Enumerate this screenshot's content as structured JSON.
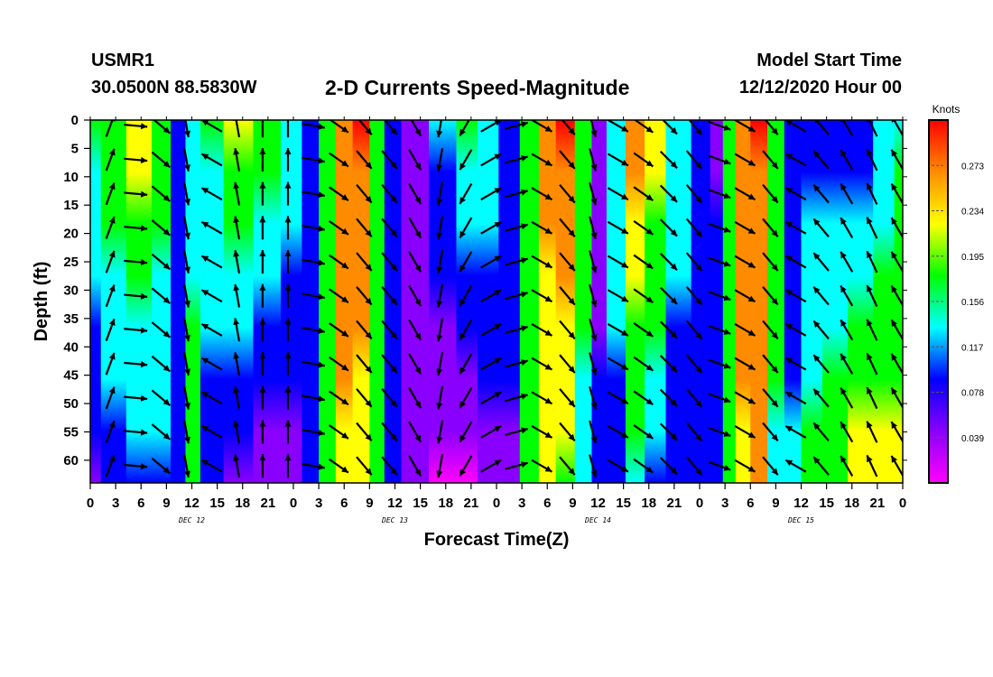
{
  "header": {
    "station_id": "USMR1",
    "coords": "30.0500N 88.5830W",
    "title": "2-D Currents Speed-Magnitude",
    "model_start_label": "Model Start Time",
    "model_start_value": "12/12/2020 Hour 00"
  },
  "colors": {
    "magenta": "#ff00ff",
    "purple": "#8a00ff",
    "blue": "#0000ff",
    "cyan": "#00ffff",
    "green": "#00ff00",
    "yellow": "#ffff00",
    "orange": "#ff8c00",
    "red": "#ff0000",
    "border": "#000000"
  },
  "chart_data": {
    "type": "heatmap",
    "title": "2-D Currents Speed-Magnitude",
    "xlabel": "Forecast Time(Z)",
    "ylabel": "Depth (ft)",
    "x_tick_labels": [
      "0",
      "3",
      "6",
      "9",
      "12",
      "15",
      "18",
      "21",
      "0",
      "3",
      "6",
      "9",
      "12",
      "15",
      "18",
      "21",
      "0",
      "3",
      "6",
      "9",
      "12",
      "15",
      "18",
      "21",
      "0",
      "3",
      "6",
      "9",
      "12",
      "15",
      "18",
      "21",
      "0"
    ],
    "x_range_hours": [
      0,
      96
    ],
    "day_labels": [
      {
        "label": "DEC 12",
        "hour": 12
      },
      {
        "label": "DEC 13",
        "hour": 36
      },
      {
        "label": "DEC 14",
        "hour": 60
      },
      {
        "label": "DEC 15",
        "hour": 84
      }
    ],
    "y_tick_labels": [
      "0",
      "5",
      "10",
      "15",
      "20",
      "25",
      "30",
      "35",
      "40",
      "45",
      "50",
      "55",
      "60"
    ],
    "y_range_ft": [
      0,
      64
    ],
    "colorbar": {
      "unit": "Knots",
      "ticks": [
        "0.273",
        "0.234",
        "0.195",
        "0.156",
        "0.117",
        "0.078",
        "0.039"
      ],
      "tick_values": [
        0.273,
        0.234,
        0.195,
        0.156,
        0.117,
        0.078,
        0.039
      ],
      "range": [
        0.0,
        0.312
      ]
    },
    "speed_columns": [
      {
        "hour": 0,
        "surface": 0.16,
        "bottom": 0.06
      },
      {
        "hour": 2.5,
        "surface": 0.2,
        "bottom": 0.08
      },
      {
        "hour": 6,
        "surface": 0.24,
        "bottom": 0.09
      },
      {
        "hour": 8.5,
        "surface": 0.18,
        "bottom": 0.1
      },
      {
        "hour": 10.5,
        "surface": 0.08,
        "bottom": 0.1
      },
      {
        "hour": 12,
        "surface": 0.12,
        "bottom": 0.2
      },
      {
        "hour": 14,
        "surface": 0.16,
        "bottom": 0.09
      },
      {
        "hour": 17.5,
        "surface": 0.22,
        "bottom": 0.06
      },
      {
        "hour": 21,
        "surface": 0.2,
        "bottom": 0.03
      },
      {
        "hour": 24,
        "surface": 0.14,
        "bottom": 0.05
      },
      {
        "hour": 26,
        "surface": 0.1,
        "bottom": 0.07
      },
      {
        "hour": 28,
        "surface": 0.17,
        "bottom": 0.2
      },
      {
        "hour": 30,
        "surface": 0.27,
        "bottom": 0.24
      },
      {
        "hour": 32,
        "surface": 0.29,
        "bottom": 0.22
      },
      {
        "hour": 34,
        "surface": 0.2,
        "bottom": 0.18
      },
      {
        "hour": 35.5,
        "surface": 0.08,
        "bottom": 0.07
      },
      {
        "hour": 38,
        "surface": 0.06,
        "bottom": 0.03
      },
      {
        "hour": 42,
        "surface": 0.12,
        "bottom": 0.02
      },
      {
        "hour": 44.5,
        "surface": 0.16,
        "bottom": 0.02
      },
      {
        "hour": 47,
        "surface": 0.14,
        "bottom": 0.04
      },
      {
        "hour": 49.5,
        "surface": 0.1,
        "bottom": 0.06
      },
      {
        "hour": 52,
        "surface": 0.18,
        "bottom": 0.18
      },
      {
        "hour": 54,
        "surface": 0.27,
        "bottom": 0.21
      },
      {
        "hour": 56,
        "surface": 0.29,
        "bottom": 0.2
      },
      {
        "hour": 58.5,
        "surface": 0.18,
        "bottom": 0.14
      },
      {
        "hour": 60,
        "surface": 0.06,
        "bottom": 0.07
      },
      {
        "hour": 62,
        "surface": 0.13,
        "bottom": 0.1
      },
      {
        "hour": 64.5,
        "surface": 0.27,
        "bottom": 0.14
      },
      {
        "hour": 66.5,
        "surface": 0.24,
        "bottom": 0.1
      },
      {
        "hour": 69.5,
        "surface": 0.14,
        "bottom": 0.08
      },
      {
        "hour": 72.5,
        "surface": 0.08,
        "bottom": 0.09
      },
      {
        "hour": 74,
        "surface": 0.06,
        "bottom": 0.1
      },
      {
        "hour": 75.5,
        "surface": 0.17,
        "bottom": 0.16
      },
      {
        "hour": 77,
        "surface": 0.27,
        "bottom": 0.24
      },
      {
        "hour": 79,
        "surface": 0.29,
        "bottom": 0.25
      },
      {
        "hour": 81,
        "surface": 0.18,
        "bottom": 0.15
      },
      {
        "hour": 83,
        "surface": 0.08,
        "bottom": 0.12
      },
      {
        "hour": 85,
        "surface": 0.1,
        "bottom": 0.17
      },
      {
        "hour": 88,
        "surface": 0.08,
        "bottom": 0.2
      },
      {
        "hour": 91,
        "surface": 0.09,
        "bottom": 0.22
      },
      {
        "hour": 94,
        "surface": 0.13,
        "bottom": 0.22
      },
      {
        "hour": 96,
        "surface": 0.15,
        "bottom": 0.22
      }
    ],
    "arrow_columns": [
      {
        "hour": 3,
        "dir": 20
      },
      {
        "hour": 6,
        "dir": 95
      },
      {
        "hour": 9,
        "dir": 130
      },
      {
        "hour": 12,
        "dir": 170
      },
      {
        "hour": 15,
        "dir": 300
      },
      {
        "hour": 18,
        "dir": 350
      },
      {
        "hour": 21,
        "dir": 0
      },
      {
        "hour": 24,
        "dir": 0
      },
      {
        "hour": 27,
        "dir": 100
      },
      {
        "hour": 30,
        "dir": 125
      },
      {
        "hour": 33,
        "dir": 140
      },
      {
        "hour": 36,
        "dir": 140
      },
      {
        "hour": 39,
        "dir": 150
      },
      {
        "hour": 42,
        "dir": 190
      },
      {
        "hour": 45,
        "dir": 210
      },
      {
        "hour": 48,
        "dir": 60
      },
      {
        "hour": 51,
        "dir": 75
      },
      {
        "hour": 54,
        "dir": 120
      },
      {
        "hour": 57,
        "dir": 140
      },
      {
        "hour": 60,
        "dir": 165
      },
      {
        "hour": 63,
        "dir": 120
      },
      {
        "hour": 66,
        "dir": 125
      },
      {
        "hour": 69,
        "dir": 135
      },
      {
        "hour": 72,
        "dir": 140
      },
      {
        "hour": 75,
        "dir": 110
      },
      {
        "hour": 78,
        "dir": 120
      },
      {
        "hour": 81,
        "dir": 140
      },
      {
        "hour": 84,
        "dir": 300
      },
      {
        "hour": 87,
        "dir": 320
      },
      {
        "hour": 90,
        "dir": 330
      },
      {
        "hour": 93,
        "dir": 335
      },
      {
        "hour": 96,
        "dir": 330
      }
    ],
    "arrow_depths_ft": [
      1,
      7,
      13,
      19,
      25,
      31,
      37,
      43,
      49,
      55,
      61
    ]
  }
}
